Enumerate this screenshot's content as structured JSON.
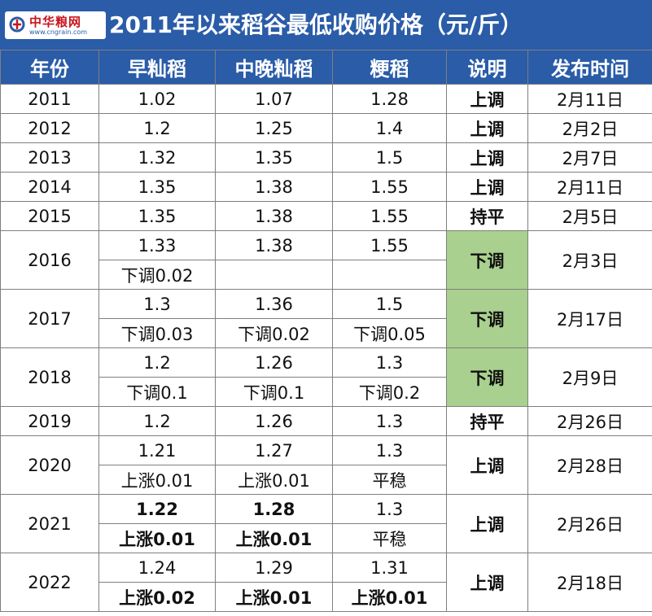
{
  "logo": {
    "name": "中华粮网",
    "url": "www.cngrain.com"
  },
  "title": "2011年以来稻谷最低收购价格（元/斤）",
  "headers": [
    "年份",
    "早籼稻",
    "中晚籼稻",
    "粳稻",
    "说明",
    "发布时间"
  ],
  "colors": {
    "header_bg": "#2a5ca8",
    "raise": "#e8141c",
    "lower_bg": "#a9d08e"
  },
  "rows": [
    {
      "year": "2011",
      "early": "1.02",
      "mid": "1.07",
      "japonica": "1.28",
      "note": "上调",
      "date": "2月11日"
    },
    {
      "year": "2012",
      "early": "1.2",
      "mid": "1.25",
      "japonica": "1.4",
      "note": "上调",
      "date": "2月2日"
    },
    {
      "year": "2013",
      "early": "1.32",
      "mid": "1.35",
      "japonica": "1.5",
      "note": "上调",
      "date": "2月7日"
    },
    {
      "year": "2014",
      "early": "1.35",
      "mid": "1.38",
      "japonica": "1.55",
      "note": "上调",
      "date": "2月11日"
    },
    {
      "year": "2015",
      "early": "1.35",
      "mid": "1.38",
      "japonica": "1.55",
      "note": "持平",
      "date": "2月5日"
    },
    {
      "year": "2016",
      "early": "1.33",
      "mid": "1.38",
      "japonica": "1.55",
      "early_change": "下调0.02",
      "mid_change": "",
      "japonica_change": "",
      "note": "下调",
      "date": "2月3日"
    },
    {
      "year": "2017",
      "early": "1.3",
      "mid": "1.36",
      "japonica": "1.5",
      "early_change": "下调0.03",
      "mid_change": "下调0.02",
      "japonica_change": "下调0.05",
      "note": "下调",
      "date": "2月17日"
    },
    {
      "year": "2018",
      "early": "1.2",
      "mid": "1.26",
      "japonica": "1.3",
      "early_change": "下调0.1",
      "mid_change": "下调0.1",
      "japonica_change": "下调0.2",
      "note": "下调",
      "date": "2月9日"
    },
    {
      "year": "2019",
      "early": "1.2",
      "mid": "1.26",
      "japonica": "1.3",
      "note": "持平",
      "date": "2月26日"
    },
    {
      "year": "2020",
      "early": "1.21",
      "mid": "1.27",
      "japonica": "1.3",
      "early_change": "上涨0.01",
      "mid_change": "上涨0.01",
      "japonica_change": "平稳",
      "note": "上调",
      "date": "2月28日"
    },
    {
      "year": "2021",
      "early": "1.22",
      "mid": "1.28",
      "japonica": "1.3",
      "early_change": "上涨0.01",
      "mid_change": "上涨0.01",
      "japonica_change": "平稳",
      "note": "上调",
      "date": "2月26日"
    },
    {
      "year": "2022",
      "early": "1.24",
      "mid": "1.29",
      "japonica": "1.31",
      "early_change": "上涨0.02",
      "mid_change": "上涨0.01",
      "japonica_change": "上涨0.01",
      "note": "上调",
      "date": "2月18日"
    }
  ]
}
